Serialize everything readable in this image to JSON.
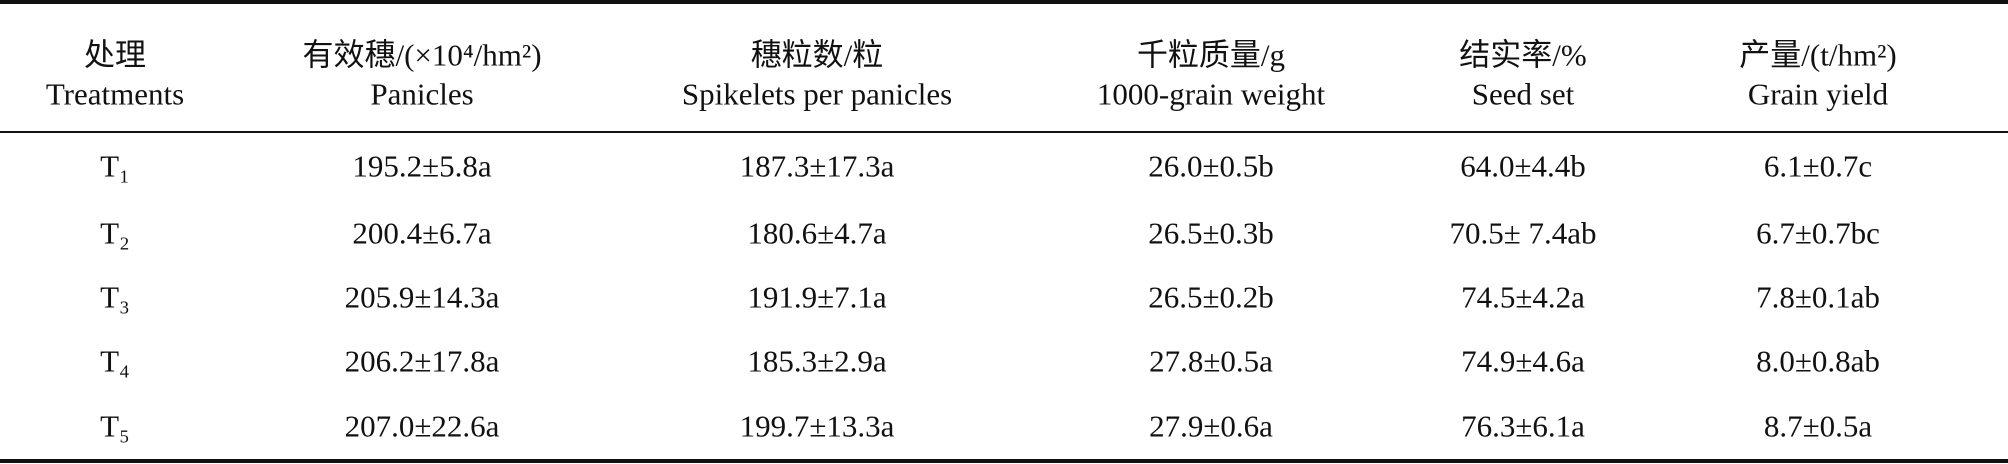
{
  "table": {
    "header": [
      {
        "zh": "处理",
        "en": "Treatments"
      },
      {
        "zh": "有效穗/(×10⁴/hm²)",
        "en": "Panicles"
      },
      {
        "zh": "穗粒数/粒",
        "en": "Spikelets per panicles"
      },
      {
        "zh": "千粒质量/g",
        "en": "1000-grain weight"
      },
      {
        "zh": "结实率/%",
        "en": "Seed set"
      },
      {
        "zh": "产量/(t/hm²)",
        "en": "Grain yield"
      }
    ],
    "rows": [
      [
        "T₁",
        "195.2±5.8a",
        "187.3±17.3a",
        "26.0±0.5b",
        "64.0±4.4b",
        "6.1±0.7c"
      ],
      [
        "T₂",
        "200.4±6.7a",
        "180.6±4.7a",
        "26.5±0.3b",
        "70.5± 7.4ab",
        "6.7±0.7bc"
      ],
      [
        "T₃",
        "205.9±14.3a",
        "191.9±7.1a",
        "26.5±0.2b",
        "74.5±4.2a",
        "7.8±0.1ab"
      ],
      [
        "T₄",
        "206.2±17.8a",
        "185.3±2.9a",
        "27.8±0.5a",
        "74.9±4.6a",
        "8.0±0.8ab"
      ],
      [
        "T₅",
        "207.0±22.6a",
        "199.7±13.3a",
        "27.9±0.6a",
        "76.3±6.1a",
        "8.7±0.5a"
      ]
    ]
  }
}
